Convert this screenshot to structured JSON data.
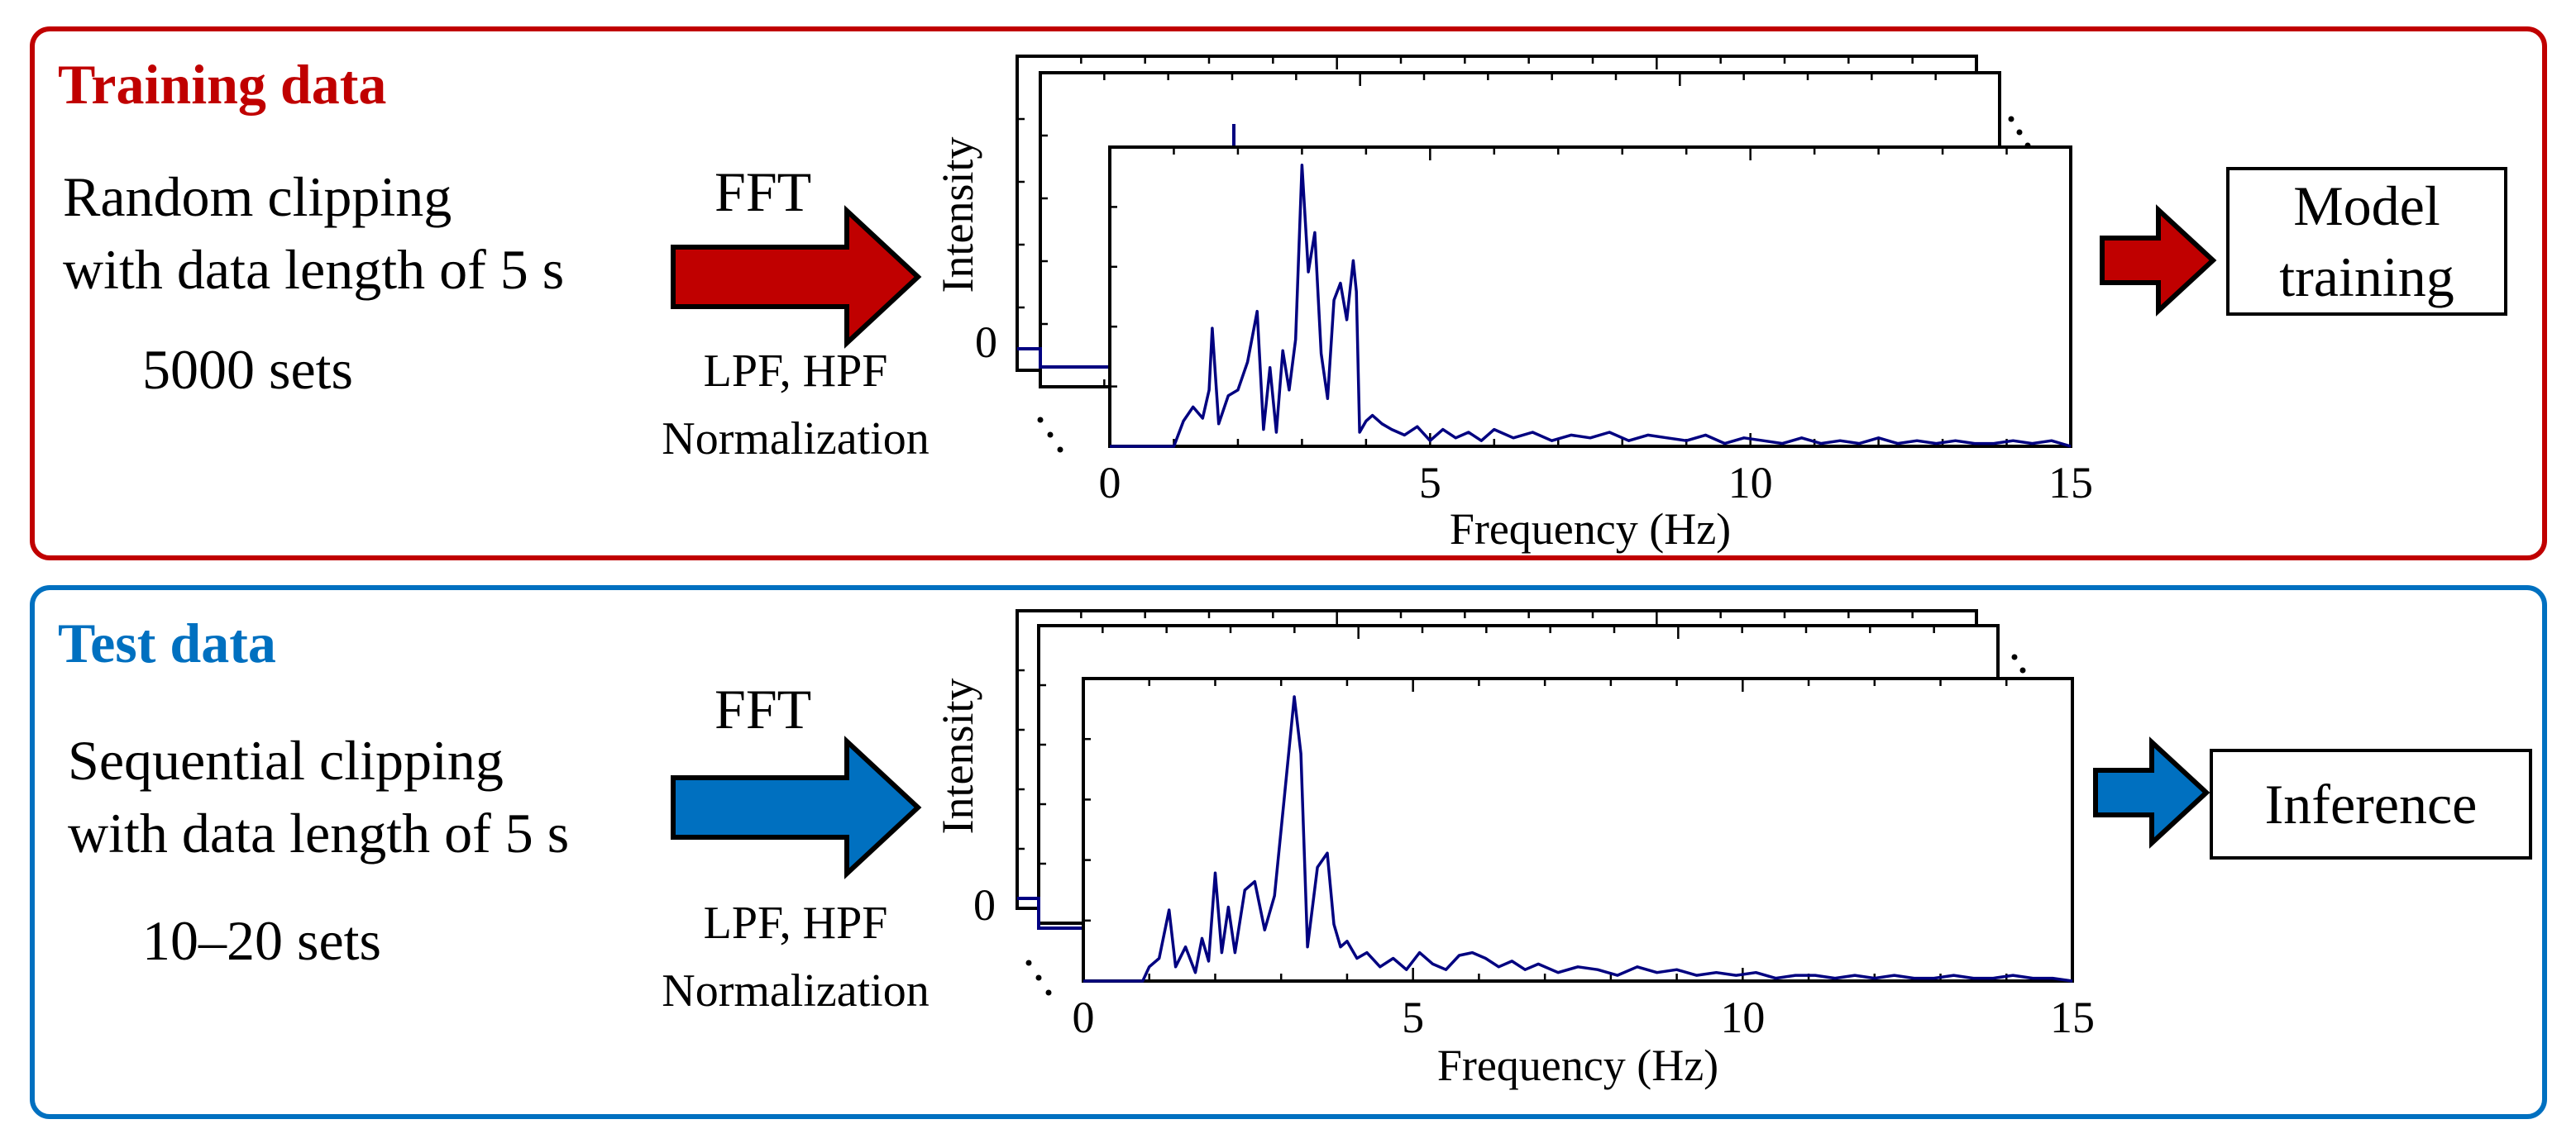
{
  "colors": {
    "train": "#c00000",
    "test": "#0070c0",
    "spectrum": "#000080"
  },
  "icons": {
    "process_arrow": "right-block-arrow-icon"
  },
  "training": {
    "heading": "Training data",
    "desc_line1": "Random clipping",
    "desc_line2": "with data length of 5 s",
    "sets": "5000 sets",
    "fft_label": "FFT",
    "filter_line1": "LPF, HPF",
    "filter_line2": "Normalization",
    "output_line1": "Model",
    "output_line2": "training"
  },
  "test": {
    "heading": "Test data",
    "desc_line1": "Sequential clipping",
    "desc_line2": "with data length of 5 s",
    "sets": "10–20 sets",
    "fft_label": "FFT",
    "filter_line1": "LPF, HPF",
    "filter_line2": "Normalization",
    "output": "Inference"
  },
  "chart_data": [
    {
      "type": "line",
      "title": "",
      "xlabel": "Frequency (Hz)",
      "ylabel": "Intensity",
      "xlim": [
        0,
        15
      ],
      "ylim": [
        0,
        1
      ],
      "x_ticks": [
        "0",
        "5",
        "10",
        "15"
      ],
      "y_ticks": [
        "0"
      ],
      "x": [
        0,
        1.0,
        1.15,
        1.3,
        1.45,
        1.55,
        1.6,
        1.7,
        1.85,
        2.0,
        2.15,
        2.3,
        2.4,
        2.5,
        2.6,
        2.7,
        2.8,
        2.9,
        3.0,
        3.1,
        3.2,
        3.3,
        3.4,
        3.5,
        3.6,
        3.7,
        3.8,
        3.85,
        3.9,
        4.0,
        4.1,
        4.25,
        4.4,
        4.6,
        4.8,
        5.0,
        5.2,
        5.4,
        5.6,
        5.8,
        6.0,
        6.3,
        6.6,
        6.9,
        7.2,
        7.5,
        7.8,
        8.1,
        8.4,
        8.7,
        9.0,
        9.3,
        9.6,
        9.9,
        10.2,
        10.5,
        10.8,
        11.1,
        11.4,
        11.7,
        12.0,
        12.3,
        12.6,
        12.9,
        13.2,
        13.5,
        13.8,
        14.1,
        14.4,
        14.7,
        15.0
      ],
      "values": [
        0,
        0,
        0.09,
        0.14,
        0.1,
        0.2,
        0.42,
        0.08,
        0.18,
        0.2,
        0.3,
        0.48,
        0.06,
        0.28,
        0.05,
        0.34,
        0.2,
        0.38,
        1.0,
        0.62,
        0.76,
        0.33,
        0.17,
        0.52,
        0.58,
        0.45,
        0.66,
        0.55,
        0.05,
        0.09,
        0.11,
        0.08,
        0.06,
        0.04,
        0.07,
        0.02,
        0.06,
        0.03,
        0.05,
        0.02,
        0.06,
        0.03,
        0.05,
        0.02,
        0.04,
        0.03,
        0.05,
        0.02,
        0.04,
        0.03,
        0.02,
        0.04,
        0.01,
        0.03,
        0.02,
        0.01,
        0.03,
        0.01,
        0.02,
        0.01,
        0.03,
        0.01,
        0.02,
        0.01,
        0.02,
        0.01,
        0.01,
        0.02,
        0.01,
        0.02,
        0.0
      ]
    },
    {
      "type": "line",
      "title": "",
      "xlabel": "Frequency (Hz)",
      "ylabel": "Intensity",
      "xlim": [
        0,
        15
      ],
      "ylim": [
        0,
        1
      ],
      "x_ticks": [
        "0",
        "5",
        "10",
        "15"
      ],
      "y_ticks": [
        "0"
      ],
      "x": [
        0,
        0.9,
        1.0,
        1.15,
        1.3,
        1.4,
        1.55,
        1.7,
        1.8,
        1.9,
        2.0,
        2.1,
        2.2,
        2.3,
        2.45,
        2.6,
        2.75,
        2.9,
        3.05,
        3.2,
        3.3,
        3.4,
        3.55,
        3.7,
        3.8,
        3.9,
        4.0,
        4.15,
        4.3,
        4.5,
        4.7,
        4.9,
        5.1,
        5.3,
        5.5,
        5.7,
        5.9,
        6.1,
        6.3,
        6.5,
        6.7,
        6.9,
        7.2,
        7.5,
        7.8,
        8.1,
        8.4,
        8.7,
        9.0,
        9.3,
        9.6,
        9.9,
        10.2,
        10.5,
        10.8,
        11.1,
        11.4,
        11.7,
        12.0,
        12.3,
        12.6,
        12.9,
        13.2,
        13.5,
        13.8,
        14.1,
        14.4,
        14.7,
        15.0
      ],
      "values": [
        0,
        0,
        0.05,
        0.08,
        0.25,
        0.05,
        0.12,
        0.03,
        0.15,
        0.07,
        0.38,
        0.1,
        0.26,
        0.1,
        0.32,
        0.35,
        0.18,
        0.3,
        0.65,
        1.0,
        0.8,
        0.12,
        0.4,
        0.45,
        0.2,
        0.12,
        0.14,
        0.08,
        0.1,
        0.05,
        0.08,
        0.04,
        0.1,
        0.06,
        0.04,
        0.09,
        0.1,
        0.08,
        0.05,
        0.07,
        0.04,
        0.06,
        0.03,
        0.05,
        0.04,
        0.02,
        0.05,
        0.03,
        0.04,
        0.02,
        0.03,
        0.02,
        0.03,
        0.01,
        0.02,
        0.02,
        0.01,
        0.02,
        0.01,
        0.02,
        0.01,
        0.01,
        0.02,
        0.01,
        0.01,
        0.02,
        0.01,
        0.01,
        0.0
      ]
    }
  ]
}
